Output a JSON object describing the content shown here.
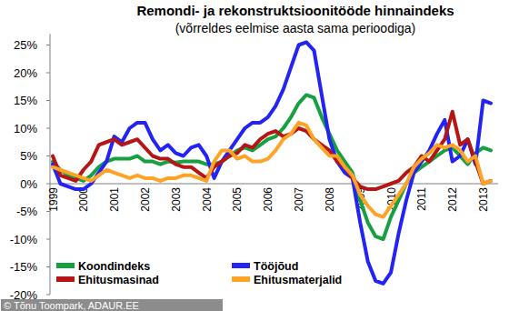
{
  "chart_data": {
    "type": "line",
    "title": "Remondi- ja rekonstruktsioonitööde hinnaindeks",
    "subtitle": "(võrreldes eelmise aasta sama perioodiga)",
    "annotation": "© Tõnu Toompark, ADAUR.EE",
    "categories": [
      "1999",
      null,
      null,
      null,
      "2000",
      null,
      null,
      null,
      "2001",
      null,
      null,
      null,
      "2002",
      null,
      null,
      null,
      "2003",
      null,
      null,
      null,
      "2004",
      null,
      null,
      null,
      "2005",
      null,
      null,
      null,
      "2006",
      null,
      null,
      null,
      "2007",
      null,
      null,
      null,
      "2008",
      null,
      null,
      null,
      "2009",
      null,
      null,
      null,
      "2010",
      null,
      null,
      null,
      "2011",
      null,
      null,
      null,
      "2012",
      null,
      null,
      null,
      "2013",
      null
    ],
    "series": [
      {
        "name": "Koondindeks",
        "color": "#17a040",
        "values": [
          4,
          2.5,
          1.5,
          1,
          0.5,
          1.5,
          3,
          4,
          4.5,
          4.5,
          4.5,
          5,
          4,
          4,
          3.5,
          4,
          3.8,
          4,
          4,
          4,
          3.5,
          3.5,
          4,
          5,
          6,
          6.5,
          6,
          7,
          8,
          8.5,
          10,
          12,
          14.5,
          16,
          15.5,
          12,
          9,
          6,
          4,
          2,
          -3,
          -7,
          -9.5,
          -10,
          -6,
          -3,
          0,
          2,
          3,
          4,
          5,
          6,
          6.5,
          5,
          3.5,
          5.5,
          6.5,
          6
        ]
      },
      {
        "name": "Tööjõud",
        "color": "#2323f5",
        "values": [
          3.5,
          0,
          -0.5,
          -1,
          -1,
          0,
          2,
          4,
          8.5,
          7.5,
          10,
          11,
          11,
          8,
          6,
          7,
          5.5,
          5,
          6.5,
          7,
          5,
          1,
          4,
          6,
          8,
          10,
          11,
          11,
          12,
          14,
          17,
          21,
          25,
          25.5,
          24,
          16,
          8,
          4,
          2,
          1,
          -7,
          -14,
          -17.5,
          -18,
          -16,
          -9,
          -3,
          2,
          4,
          6,
          9,
          11.5,
          4,
          5,
          8,
          3.5,
          15,
          14.5
        ]
      },
      {
        "name": "Ehitusmasinad",
        "color": "#b51515",
        "values": [
          5,
          1.5,
          1,
          0.5,
          2.5,
          4,
          7,
          7.5,
          8,
          7,
          7.5,
          8,
          6.5,
          5,
          4.5,
          4.5,
          3.5,
          3,
          3,
          2,
          1,
          3,
          4,
          5,
          5.5,
          7,
          6.5,
          8,
          9,
          9.5,
          8.5,
          9,
          10,
          9.5,
          8,
          7,
          6,
          4,
          3,
          1,
          -0.5,
          -1,
          -1,
          -0.5,
          0,
          0.5,
          2,
          3,
          5,
          4,
          6,
          8,
          13,
          7,
          8,
          4,
          0,
          0.5
        ]
      },
      {
        "name": "Ehitusmaterjalid",
        "color": "#ffa326",
        "values": [
          3,
          2.5,
          2,
          1.5,
          1,
          0.5,
          1.5,
          2.5,
          2,
          1.5,
          1,
          1.5,
          1,
          1,
          0.5,
          1,
          1,
          1.5,
          1.5,
          1,
          0.5,
          4,
          6,
          6,
          4.5,
          5,
          4,
          4,
          4.5,
          6,
          8,
          9,
          11,
          10.5,
          8,
          6.5,
          5,
          5,
          3,
          1.5,
          -2,
          -4,
          -5.5,
          -6,
          -4,
          -2,
          0,
          3,
          4.5,
          5.5,
          7,
          6.5,
          7,
          6,
          4,
          5,
          0,
          0.5
        ]
      }
    ],
    "ylim": [
      -20,
      27
    ],
    "yticks": [
      {
        "value": -20,
        "label": "-20%"
      },
      {
        "value": -15,
        "label": "-15%"
      },
      {
        "value": -10,
        "label": "-10%"
      },
      {
        "value": -5,
        "label": "-5%"
      },
      {
        "value": 0,
        "label": "0%"
      },
      {
        "value": 5,
        "label": "5%"
      },
      {
        "value": 10,
        "label": "10%"
      },
      {
        "value": 15,
        "label": "15%"
      },
      {
        "value": 20,
        "label": "20%"
      },
      {
        "value": 25,
        "label": "25%"
      }
    ],
    "grid": false,
    "legend": "lower left"
  }
}
